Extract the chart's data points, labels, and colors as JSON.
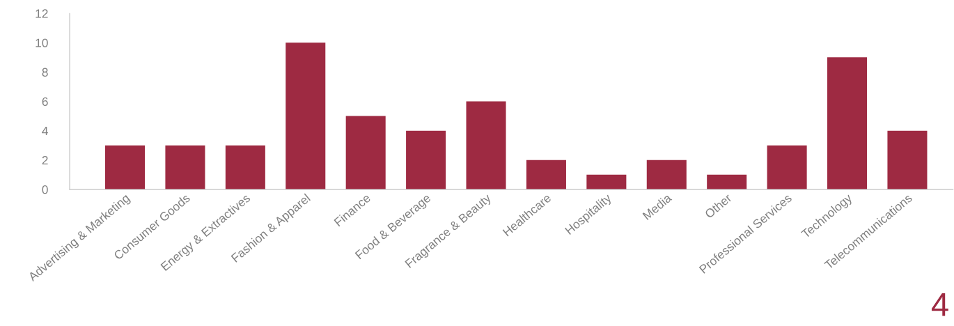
{
  "chart_data": {
    "type": "bar",
    "categories": [
      "Advertising & Marketing",
      "Consumer Goods",
      "Energy & Extractives",
      "Fashion & Apparel",
      "Finance",
      "Food & Beverage",
      "Fragrance & Beauty",
      "Healthcare",
      "Hospitality",
      "Media",
      "Other",
      "Professional Services",
      "Technology",
      "Telecommunications"
    ],
    "values": [
      3,
      3,
      3,
      10,
      5,
      4,
      6,
      2,
      1,
      2,
      1,
      3,
      9,
      4
    ],
    "color": "#9e2a42",
    "ylim": [
      0,
      12
    ],
    "yticks": [
      0,
      2,
      4,
      6,
      8,
      10,
      12
    ],
    "grid": false,
    "annotations": [
      "4"
    ]
  }
}
